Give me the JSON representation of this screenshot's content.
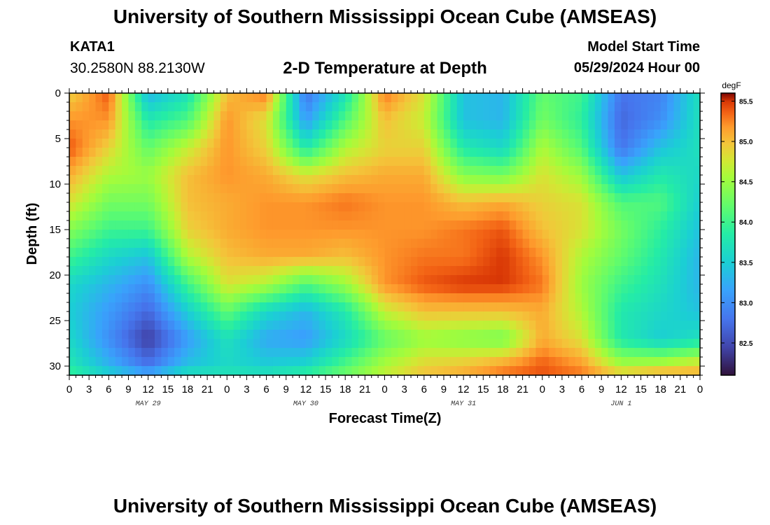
{
  "header": {
    "title": "University of Southern Mississippi Ocean Cube (AMSEAS)",
    "station": "KATA1",
    "coords": "30.2580N  88.2130W",
    "plot_title": "2-D Temperature at Depth",
    "model_start_label": "Model Start Time",
    "model_start_value": "05/29/2024 Hour 00"
  },
  "footer": {
    "title": "University of Southern Mississippi Ocean Cube (AMSEAS)"
  },
  "chart_data": {
    "type": "heatmap",
    "title": "2-D Temperature at Depth",
    "xlabel": "Forecast Time(Z)",
    "ylabel": "Depth (ft)",
    "ylim": [
      0,
      31
    ],
    "y_inverted": true,
    "y_ticks": [
      0,
      5,
      10,
      15,
      20,
      25,
      30
    ],
    "x_range_hours": [
      0,
      96
    ],
    "x_tick_labels": [
      "0",
      "3",
      "6",
      "9",
      "12",
      "15",
      "18",
      "21",
      "0",
      "3",
      "6",
      "9",
      "12",
      "15",
      "18",
      "21",
      "0",
      "3",
      "6",
      "9",
      "12",
      "15",
      "18",
      "21",
      "0",
      "3",
      "6",
      "9",
      "12",
      "15",
      "18",
      "21",
      "0"
    ],
    "day_labels": [
      {
        "label": "MAY 29",
        "hour": 12
      },
      {
        "label": "MAY 30",
        "hour": 36
      },
      {
        "label": "MAY 31",
        "hour": 60
      },
      {
        "label": "JUN 1",
        "hour": 84
      }
    ],
    "colorbar": {
      "unit": "degF",
      "min": 82.1,
      "max": 85.6,
      "ticks": [
        "85.5",
        "85.0",
        "84.5",
        "84.0",
        "83.5",
        "83.0",
        "82.5"
      ]
    },
    "value_unit": "degF",
    "grid": {
      "hours": [
        0,
        6,
        12,
        18,
        24,
        30,
        36,
        42,
        48,
        54,
        60,
        66,
        72,
        78,
        84,
        90,
        96
      ],
      "depths_ft": [
        0,
        3,
        6,
        9,
        12,
        15,
        18,
        21,
        24,
        27,
        30,
        31
      ],
      "values": [
        [
          84.9,
          85.4,
          83.3,
          83.7,
          85.0,
          85.3,
          82.8,
          83.7,
          85.3,
          84.8,
          83.4,
          83.3,
          84.2,
          84.0,
          82.8,
          82.9,
          83.7
        ],
        [
          85.2,
          85.2,
          83.8,
          84.1,
          85.2,
          84.8,
          83.1,
          84.1,
          85.0,
          84.7,
          83.4,
          83.3,
          84.3,
          83.9,
          82.7,
          83.0,
          83.7
        ],
        [
          85.4,
          84.9,
          84.2,
          84.7,
          85.2,
          84.9,
          83.8,
          84.6,
          84.9,
          84.9,
          83.8,
          83.6,
          84.6,
          84.1,
          82.8,
          83.4,
          83.7
        ],
        [
          85.1,
          84.6,
          84.5,
          85.0,
          85.2,
          85.1,
          84.8,
          85.0,
          85.1,
          85.1,
          84.4,
          84.3,
          84.8,
          84.5,
          83.4,
          83.8,
          83.6
        ],
        [
          84.8,
          84.3,
          84.3,
          85.0,
          85.1,
          85.2,
          85.2,
          85.3,
          85.2,
          85.2,
          85.0,
          85.1,
          84.9,
          84.8,
          84.1,
          84.1,
          83.5
        ],
        [
          84.4,
          84.0,
          84.0,
          84.9,
          85.1,
          85.2,
          85.2,
          85.2,
          85.2,
          85.2,
          85.3,
          85.4,
          85.0,
          84.8,
          84.3,
          83.9,
          83.4
        ],
        [
          84.0,
          83.6,
          83.4,
          84.6,
          85.0,
          85.1,
          85.1,
          85.0,
          85.2,
          85.3,
          85.3,
          85.5,
          85.2,
          84.6,
          84.2,
          83.8,
          83.3
        ],
        [
          83.6,
          83.3,
          83.0,
          84.0,
          84.8,
          84.6,
          84.1,
          84.5,
          85.2,
          85.4,
          85.5,
          85.5,
          85.3,
          84.5,
          84.0,
          83.7,
          83.3
        ],
        [
          83.5,
          83.1,
          82.7,
          83.5,
          84.2,
          83.6,
          83.3,
          83.8,
          84.7,
          85.0,
          85.0,
          85.0,
          85.1,
          84.6,
          83.8,
          83.6,
          83.4
        ],
        [
          83.6,
          83.0,
          82.4,
          83.1,
          83.7,
          83.2,
          83.1,
          83.6,
          84.2,
          84.5,
          84.4,
          84.3,
          85.1,
          84.8,
          83.8,
          83.5,
          83.7
        ],
        [
          83.8,
          83.3,
          82.8,
          83.4,
          83.6,
          83.5,
          83.6,
          84.1,
          84.6,
          84.9,
          85.0,
          85.2,
          85.4,
          85.2,
          84.6,
          84.7,
          84.9
        ],
        [
          84.0,
          83.6,
          83.3,
          83.8,
          83.8,
          83.8,
          84.0,
          84.3,
          84.7,
          85.0,
          85.1,
          85.3,
          85.4,
          85.3,
          85.0,
          85.2,
          85.1
        ]
      ]
    }
  }
}
